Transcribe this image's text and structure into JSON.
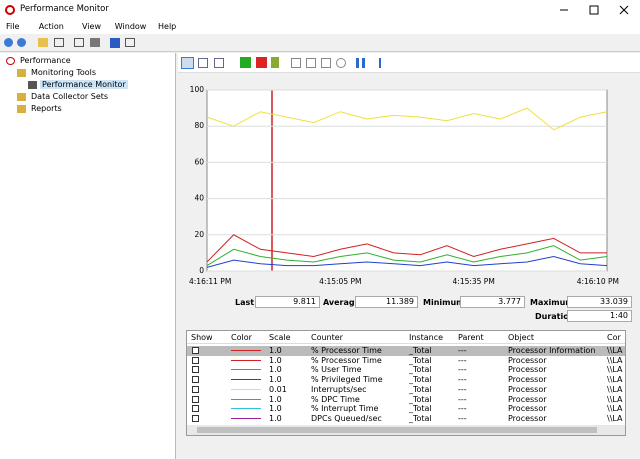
{
  "window": {
    "title": "Performance Monitor"
  },
  "menu": [
    "File",
    "Action",
    "View",
    "Window",
    "Help"
  ],
  "tree": [
    "Performance",
    "Monitoring Tools",
    "Performance Monitor",
    "Data Collector Sets",
    "Reports"
  ],
  "stats": {
    "last_label": "Last",
    "last": "9.811",
    "average_label": "Average",
    "average": "11.389",
    "minimum_label": "Minimum",
    "minimum": "3.777",
    "maximum_label": "Maximum",
    "maximum": "33.039",
    "duration_label": "Duration",
    "duration": "1:40"
  },
  "chart_data": {
    "type": "line",
    "categories": [
      "4:16:11 PM",
      null,
      null,
      null,
      null,
      "4:15:05 PM",
      null,
      null,
      null,
      null,
      "4:15:35 PM",
      null,
      null,
      null,
      null,
      "4:16:10 PM"
    ],
    "ylim": [
      0,
      100
    ],
    "yticks": [
      0,
      20,
      40,
      60,
      80,
      100
    ],
    "grid": true,
    "series": [
      {
        "name": "Interrupts/sec",
        "color": "#f0e040",
        "values": [
          85,
          80,
          88,
          85,
          82,
          88,
          84,
          86,
          85,
          83,
          87,
          84,
          90,
          78,
          85,
          88
        ]
      },
      {
        "name": "% User Time",
        "color": "#30b030",
        "values": [
          3,
          12,
          8,
          6,
          5,
          8,
          10,
          6,
          5,
          9,
          5,
          8,
          10,
          14,
          6,
          8
        ]
      },
      {
        "name": "% Privileged Time",
        "color": "#2040d0",
        "values": [
          2,
          6,
          4,
          3,
          3,
          4,
          5,
          4,
          3,
          5,
          3,
          4,
          5,
          8,
          4,
          3
        ]
      },
      {
        "name": "% Processor Time",
        "color": "#d02020",
        "values": [
          5,
          20,
          12,
          10,
          8,
          12,
          15,
          10,
          9,
          14,
          8,
          12,
          15,
          18,
          10,
          10
        ]
      }
    ]
  },
  "table": {
    "headers": [
      "Show",
      "Color",
      "Scale",
      "Counter",
      "Instance",
      "Parent",
      "Object",
      "Cor"
    ],
    "rows": [
      {
        "color": "#d02020",
        "cells": [
          "1.0",
          "% Processor Time",
          "_Total",
          "---",
          "Processor Information",
          "\\\\LA"
        ]
      },
      {
        "color": "#d02020",
        "cells": [
          "1.0",
          "% Processor Time",
          "_Total",
          "---",
          "Processor",
          "\\\\LA"
        ]
      },
      {
        "color": "#30b030",
        "cells": [
          "1.0",
          "% User Time",
          "_Total",
          "---",
          "Processor",
          "\\\\LA"
        ]
      },
      {
        "color": "#2040d0",
        "cells": [
          "1.0",
          "% Privileged Time",
          "_Total",
          "---",
          "Processor",
          "\\\\LA"
        ]
      },
      {
        "color": "#f0e040",
        "cells": [
          "0.01",
          "Interrupts/sec",
          "_Total",
          "---",
          "Processor",
          "\\\\LA"
        ]
      },
      {
        "color": "#e040e0",
        "cells": [
          "1.0",
          "% DPC Time",
          "_Total",
          "---",
          "Processor",
          "\\\\LA"
        ]
      },
      {
        "color": "#30c0e0",
        "cells": [
          "1.0",
          "% Interrupt Time",
          "_Total",
          "---",
          "Processor",
          "\\\\LA"
        ]
      },
      {
        "color": "#a020a0",
        "cells": [
          "1.0",
          "DPCs Queued/sec",
          "_Total",
          "---",
          "Processor",
          "\\\\LA"
        ]
      }
    ]
  }
}
